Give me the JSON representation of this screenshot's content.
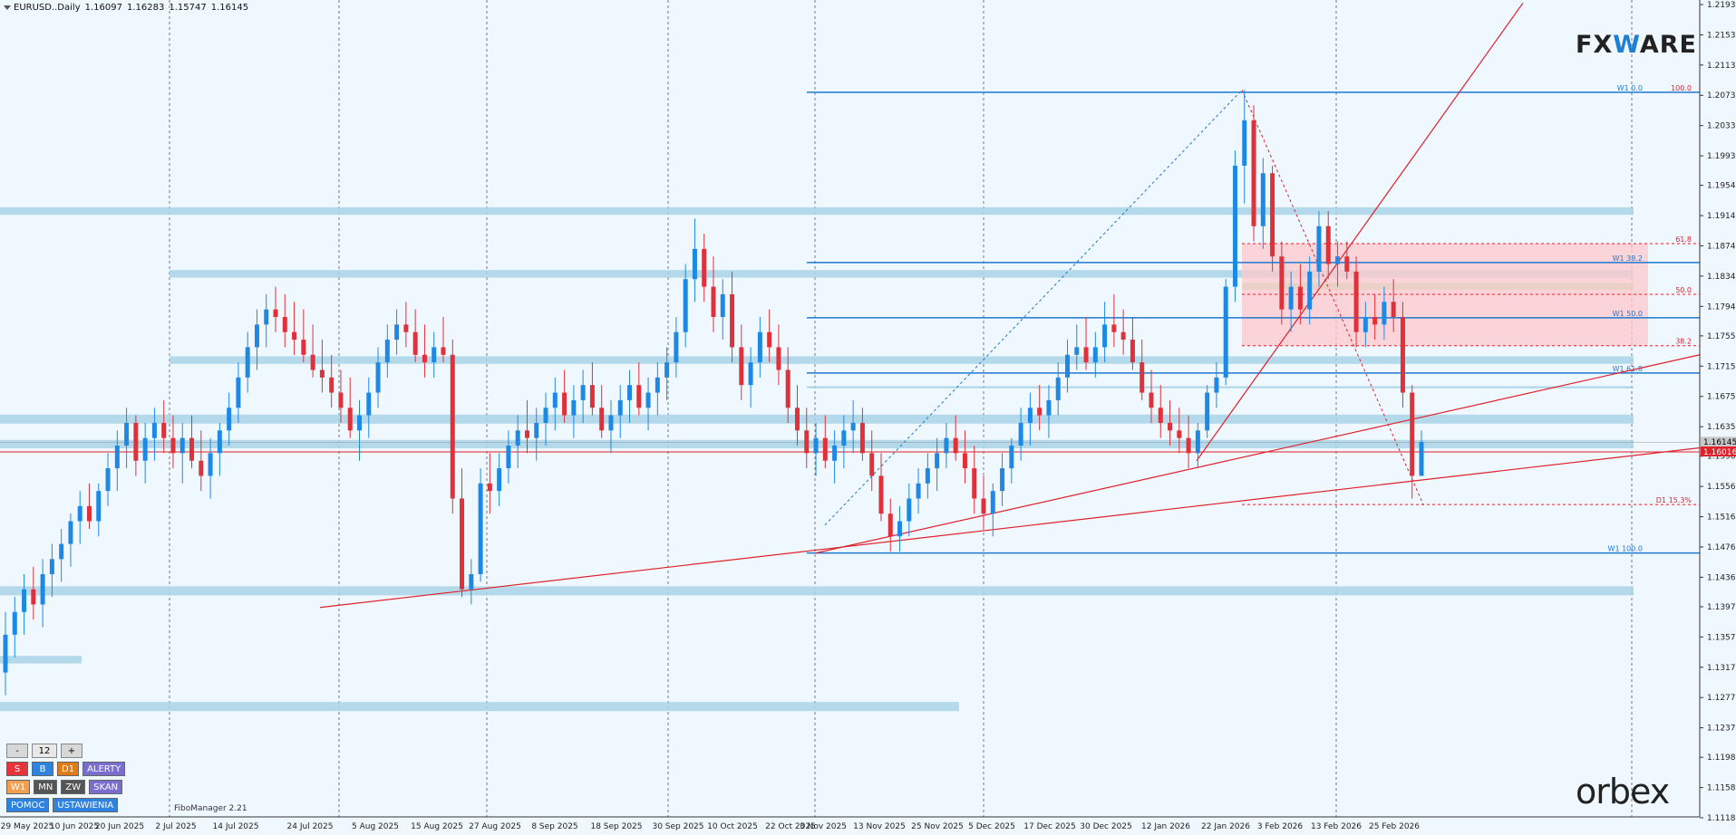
{
  "header": {
    "symbol": "EURUSD..Daily",
    "open": "1.16097",
    "high": "1.16283",
    "low": "1.15747",
    "close": "1.16145"
  },
  "logos": {
    "fxware_pre": "FX",
    "fxware_w": "W",
    "fxware_post": "ARE",
    "orbex": "orbex"
  },
  "indicator_label": "FiboManager 2.21",
  "panel": {
    "minus": "-",
    "value": "12",
    "plus": "+",
    "row2": [
      "S",
      "B",
      "D1",
      "ALERTY"
    ],
    "row3": [
      "W1",
      "MN",
      "ZW",
      "SKAN"
    ],
    "row4": [
      "POMOC",
      "USTAWIENIA"
    ]
  },
  "colors": {
    "bull": "#1e88e5",
    "bear": "#e0303a",
    "zone": "#a8d4e6",
    "fib_zone": "#ffc8cc",
    "level_blue": "#1e78d0",
    "line_red": "#e0202a"
  },
  "chart_data": {
    "type": "candlestick",
    "symbol": "EURUSD",
    "timeframe": "Daily",
    "ylim": [
      1.1118,
      1.2193
    ],
    "y_ticks": [
      "1.21930",
      "1.21530",
      "1.21130",
      "1.20730",
      "1.20330",
      "1.19930",
      "1.19540",
      "1.19140",
      "1.18740",
      "1.18340",
      "1.17940",
      "1.17550",
      "1.17150",
      "1.16750",
      "1.16350",
      "1.15960",
      "1.15560",
      "1.15160",
      "1.14760",
      "1.14360",
      "1.13970",
      "1.13570",
      "1.13170",
      "1.12770",
      "1.12370",
      "1.11980",
      "1.11580",
      "1.11180"
    ],
    "x_labels": [
      "29 May 2025",
      "10 Jun 2025",
      "20 Jun 2025",
      "2 Jul 2025",
      "14 Jul 2025",
      "24 Jul 2025",
      "5 Aug 2025",
      "15 Aug 2025",
      "27 Aug 2025",
      "8 Sep 2025",
      "18 Sep 2025",
      "30 Sep 2025",
      "10 Oct 2025",
      "22 Oct 2025",
      "3 Nov 2025",
      "13 Nov 2025",
      "25 Nov 2025",
      "5 Dec 2025",
      "17 Dec 2025",
      "30 Dec 2025",
      "12 Jan 2026",
      "22 Jan 2026",
      "3 Feb 2026",
      "13 Feb 2026",
      "25 Feb 2026"
    ],
    "price_bid": "1.16145",
    "price_ref": "1.16016",
    "fib_labels": [
      {
        "text": "100.0",
        "price": 1.2077
      },
      {
        "text": "W1 0.0",
        "price": 1.2077
      },
      {
        "text": "61.8",
        "price": 1.1877
      },
      {
        "text": "W1 38.2",
        "price": 1.1852
      },
      {
        "text": "50.0",
        "price": 1.181
      },
      {
        "text": "W1 50.0",
        "price": 1.1779
      },
      {
        "text": "38.2",
        "price": 1.1742
      },
      {
        "text": "W1 61.8",
        "price": 1.1706
      },
      {
        "text": "D1 15.3%",
        "price": 1.1532
      },
      {
        "text": "W1 100.0",
        "price": 1.1468
      }
    ],
    "candles": [
      [
        1.131,
        1.139,
        1.128,
        1.136
      ],
      [
        1.136,
        1.141,
        1.133,
        1.139
      ],
      [
        1.139,
        1.144,
        1.136,
        1.142
      ],
      [
        1.142,
        1.145,
        1.138,
        1.14
      ],
      [
        1.14,
        1.146,
        1.137,
        1.144
      ],
      [
        1.144,
        1.148,
        1.141,
        1.146
      ],
      [
        1.146,
        1.15,
        1.143,
        1.148
      ],
      [
        1.148,
        1.152,
        1.145,
        1.151
      ],
      [
        1.151,
        1.155,
        1.148,
        1.153
      ],
      [
        1.153,
        1.156,
        1.15,
        1.151
      ],
      [
        1.151,
        1.156,
        1.149,
        1.155
      ],
      [
        1.155,
        1.16,
        1.153,
        1.158
      ],
      [
        1.158,
        1.163,
        1.155,
        1.161
      ],
      [
        1.161,
        1.166,
        1.158,
        1.164
      ],
      [
        1.164,
        1.165,
        1.157,
        1.159
      ],
      [
        1.159,
        1.164,
        1.156,
        1.162
      ],
      [
        1.162,
        1.166,
        1.159,
        1.164
      ],
      [
        1.164,
        1.167,
        1.16,
        1.162
      ],
      [
        1.162,
        1.165,
        1.158,
        1.16
      ],
      [
        1.16,
        1.164,
        1.156,
        1.162
      ],
      [
        1.162,
        1.165,
        1.158,
        1.159
      ],
      [
        1.159,
        1.163,
        1.155,
        1.157
      ],
      [
        1.157,
        1.162,
        1.154,
        1.16
      ],
      [
        1.16,
        1.164,
        1.157,
        1.163
      ],
      [
        1.163,
        1.168,
        1.161,
        1.166
      ],
      [
        1.166,
        1.172,
        1.164,
        1.17
      ],
      [
        1.17,
        1.176,
        1.168,
        1.174
      ],
      [
        1.174,
        1.179,
        1.171,
        1.177
      ],
      [
        1.177,
        1.181,
        1.174,
        1.179
      ],
      [
        1.179,
        1.182,
        1.176,
        1.178
      ],
      [
        1.178,
        1.181,
        1.174,
        1.176
      ],
      [
        1.176,
        1.18,
        1.173,
        1.175
      ],
      [
        1.175,
        1.179,
        1.172,
        1.173
      ],
      [
        1.173,
        1.177,
        1.17,
        1.171
      ],
      [
        1.171,
        1.175,
        1.168,
        1.17
      ],
      [
        1.17,
        1.173,
        1.166,
        1.168
      ],
      [
        1.168,
        1.171,
        1.164,
        1.166
      ],
      [
        1.166,
        1.17,
        1.162,
        1.163
      ],
      [
        1.163,
        1.167,
        1.159,
        1.165
      ],
      [
        1.165,
        1.17,
        1.162,
        1.168
      ],
      [
        1.168,
        1.174,
        1.166,
        1.172
      ],
      [
        1.172,
        1.177,
        1.17,
        1.175
      ],
      [
        1.175,
        1.179,
        1.173,
        1.177
      ],
      [
        1.177,
        1.18,
        1.174,
        1.176
      ],
      [
        1.176,
        1.179,
        1.172,
        1.173
      ],
      [
        1.173,
        1.177,
        1.17,
        1.172
      ],
      [
        1.172,
        1.176,
        1.17,
        1.174
      ],
      [
        1.174,
        1.178,
        1.172,
        1.173
      ],
      [
        1.173,
        1.175,
        1.152,
        1.154
      ],
      [
        1.154,
        1.158,
        1.141,
        1.142
      ],
      [
        1.142,
        1.146,
        1.14,
        1.144
      ],
      [
        1.144,
        1.158,
        1.143,
        1.156
      ],
      [
        1.156,
        1.16,
        1.152,
        1.155
      ],
      [
        1.155,
        1.16,
        1.153,
        1.158
      ],
      [
        1.158,
        1.163,
        1.156,
        1.161
      ],
      [
        1.161,
        1.165,
        1.158,
        1.163
      ],
      [
        1.163,
        1.167,
        1.16,
        1.162
      ],
      [
        1.162,
        1.166,
        1.159,
        1.164
      ],
      [
        1.164,
        1.168,
        1.161,
        1.166
      ],
      [
        1.166,
        1.17,
        1.163,
        1.168
      ],
      [
        1.168,
        1.171,
        1.164,
        1.165
      ],
      [
        1.165,
        1.169,
        1.162,
        1.167
      ],
      [
        1.167,
        1.171,
        1.164,
        1.169
      ],
      [
        1.169,
        1.172,
        1.165,
        1.166
      ],
      [
        1.166,
        1.169,
        1.162,
        1.163
      ],
      [
        1.163,
        1.167,
        1.16,
        1.165
      ],
      [
        1.165,
        1.169,
        1.162,
        1.167
      ],
      [
        1.167,
        1.171,
        1.164,
        1.169
      ],
      [
        1.169,
        1.172,
        1.165,
        1.166
      ],
      [
        1.166,
        1.17,
        1.163,
        1.168
      ],
      [
        1.168,
        1.172,
        1.165,
        1.17
      ],
      [
        1.17,
        1.174,
        1.167,
        1.172
      ],
      [
        1.172,
        1.178,
        1.17,
        1.176
      ],
      [
        1.176,
        1.185,
        1.174,
        1.183
      ],
      [
        1.183,
        1.191,
        1.18,
        1.187
      ],
      [
        1.187,
        1.189,
        1.18,
        1.182
      ],
      [
        1.182,
        1.186,
        1.176,
        1.178
      ],
      [
        1.178,
        1.183,
        1.175,
        1.181
      ],
      [
        1.181,
        1.184,
        1.172,
        1.174
      ],
      [
        1.174,
        1.177,
        1.167,
        1.169
      ],
      [
        1.169,
        1.174,
        1.166,
        1.172
      ],
      [
        1.172,
        1.178,
        1.17,
        1.176
      ],
      [
        1.176,
        1.179,
        1.172,
        1.174
      ],
      [
        1.174,
        1.177,
        1.169,
        1.171
      ],
      [
        1.171,
        1.174,
        1.164,
        1.166
      ],
      [
        1.166,
        1.169,
        1.161,
        1.163
      ],
      [
        1.163,
        1.166,
        1.158,
        1.16
      ],
      [
        1.16,
        1.164,
        1.157,
        1.162
      ],
      [
        1.162,
        1.165,
        1.158,
        1.159
      ],
      [
        1.159,
        1.163,
        1.156,
        1.161
      ],
      [
        1.161,
        1.165,
        1.158,
        1.163
      ],
      [
        1.163,
        1.167,
        1.16,
        1.164
      ],
      [
        1.164,
        1.166,
        1.159,
        1.16
      ],
      [
        1.16,
        1.163,
        1.155,
        1.157
      ],
      [
        1.157,
        1.16,
        1.151,
        1.152
      ],
      [
        1.152,
        1.154,
        1.147,
        1.149
      ],
      [
        1.149,
        1.153,
        1.147,
        1.151
      ],
      [
        1.151,
        1.156,
        1.149,
        1.154
      ],
      [
        1.154,
        1.158,
        1.152,
        1.156
      ],
      [
        1.156,
        1.16,
        1.154,
        1.158
      ],
      [
        1.158,
        1.162,
        1.155,
        1.16
      ],
      [
        1.16,
        1.164,
        1.158,
        1.162
      ],
      [
        1.162,
        1.165,
        1.159,
        1.16
      ],
      [
        1.16,
        1.163,
        1.156,
        1.158
      ],
      [
        1.158,
        1.161,
        1.152,
        1.154
      ],
      [
        1.154,
        1.157,
        1.15,
        1.152
      ],
      [
        1.152,
        1.156,
        1.149,
        1.155
      ],
      [
        1.155,
        1.16,
        1.153,
        1.158
      ],
      [
        1.158,
        1.162,
        1.156,
        1.161
      ],
      [
        1.161,
        1.166,
        1.159,
        1.164
      ],
      [
        1.164,
        1.168,
        1.161,
        1.166
      ],
      [
        1.166,
        1.169,
        1.163,
        1.165
      ],
      [
        1.165,
        1.169,
        1.162,
        1.167
      ],
      [
        1.167,
        1.172,
        1.165,
        1.17
      ],
      [
        1.17,
        1.175,
        1.168,
        1.173
      ],
      [
        1.173,
        1.177,
        1.171,
        1.174
      ],
      [
        1.174,
        1.178,
        1.171,
        1.172
      ],
      [
        1.172,
        1.176,
        1.17,
        1.174
      ],
      [
        1.174,
        1.18,
        1.172,
        1.177
      ],
      [
        1.177,
        1.181,
        1.174,
        1.176
      ],
      [
        1.176,
        1.179,
        1.173,
        1.175
      ],
      [
        1.175,
        1.178,
        1.171,
        1.172
      ],
      [
        1.172,
        1.175,
        1.167,
        1.168
      ],
      [
        1.168,
        1.171,
        1.164,
        1.166
      ],
      [
        1.166,
        1.169,
        1.162,
        1.164
      ],
      [
        1.164,
        1.167,
        1.161,
        1.163
      ],
      [
        1.163,
        1.166,
        1.16,
        1.162
      ],
      [
        1.162,
        1.165,
        1.158,
        1.16
      ],
      [
        1.16,
        1.164,
        1.158,
        1.163
      ],
      [
        1.163,
        1.169,
        1.162,
        1.168
      ],
      [
        1.168,
        1.172,
        1.166,
        1.17
      ],
      [
        1.17,
        1.183,
        1.169,
        1.182
      ],
      [
        1.182,
        1.2,
        1.18,
        1.198
      ],
      [
        1.198,
        1.208,
        1.193,
        1.204
      ],
      [
        1.204,
        1.206,
        1.188,
        1.19
      ],
      [
        1.19,
        1.199,
        1.187,
        1.197
      ],
      [
        1.197,
        1.198,
        1.184,
        1.186
      ],
      [
        1.186,
        1.188,
        1.177,
        1.179
      ],
      [
        1.179,
        1.184,
        1.176,
        1.182
      ],
      [
        1.182,
        1.185,
        1.177,
        1.179
      ],
      [
        1.179,
        1.186,
        1.177,
        1.184
      ],
      [
        1.184,
        1.192,
        1.182,
        1.19
      ],
      [
        1.19,
        1.192,
        1.183,
        1.185
      ],
      [
        1.185,
        1.188,
        1.182,
        1.186
      ],
      [
        1.186,
        1.188,
        1.183,
        1.184
      ],
      [
        1.184,
        1.186,
        1.174,
        1.176
      ],
      [
        1.176,
        1.18,
        1.174,
        1.178
      ],
      [
        1.178,
        1.181,
        1.175,
        1.177
      ],
      [
        1.177,
        1.182,
        1.175,
        1.18
      ],
      [
        1.18,
        1.183,
        1.176,
        1.178
      ],
      [
        1.178,
        1.18,
        1.166,
        1.168
      ],
      [
        1.168,
        1.169,
        1.154,
        1.157
      ],
      [
        1.157,
        1.163,
        1.157,
        1.1615
      ]
    ]
  }
}
